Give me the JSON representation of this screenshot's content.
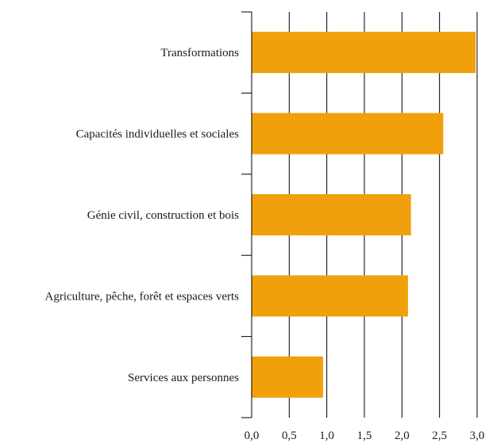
{
  "chart_data": {
    "type": "bar",
    "orientation": "horizontal",
    "categories": [
      "Transformations",
      "Capacités individuelles et sociales",
      "Génie civil, construction et bois",
      "Agriculture, pêche, forêt et espaces verts",
      "Services aux personnes"
    ],
    "values": [
      2.98,
      2.55,
      2.12,
      2.08,
      0.95
    ],
    "x_ticks": [
      "0,0",
      "0,5",
      "1,0",
      "1,5",
      "2,0",
      "2,5",
      "3,0"
    ],
    "xlim": [
      0,
      3.0
    ],
    "grid": "vertical",
    "bar_color": "#F0A00A",
    "title": "",
    "xlabel": "",
    "ylabel": ""
  }
}
